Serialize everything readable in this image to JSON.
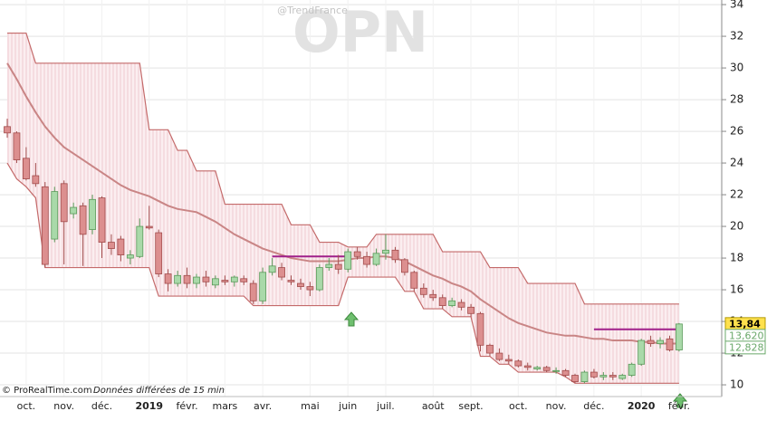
{
  "chart_data": {
    "type": "candlestick",
    "title": "OPN",
    "subtitle": "@TrendFrance",
    "source": "© ProRealTime.com",
    "note": "Données différées de 15 min",
    "categories": [
      null,
      null,
      "oct.",
      null,
      null,
      null,
      "nov.",
      null,
      null,
      null,
      "déc.",
      null,
      null,
      null,
      null,
      "2019",
      null,
      null,
      null,
      "févr.",
      null,
      null,
      null,
      "mars",
      null,
      null,
      null,
      "avr.",
      null,
      null,
      null,
      null,
      "mai",
      null,
      null,
      null,
      "juin",
      null,
      null,
      null,
      "juil.",
      null,
      null,
      null,
      null,
      "août",
      null,
      null,
      null,
      "sept.",
      null,
      null,
      null,
      null,
      "oct.",
      null,
      null,
      null,
      "nov.",
      null,
      null,
      null,
      "déc.",
      null,
      null,
      null,
      null,
      "2020",
      null,
      null,
      null,
      "févr."
    ],
    "open": [
      26.3,
      25.9,
      24.3,
      23.2,
      22.5,
      19.2,
      22.7,
      20.8,
      21.3,
      19.8,
      21.8,
      19.0,
      19.2,
      18.0,
      18.1,
      20.0,
      19.6,
      17.0,
      16.4,
      16.9,
      16.4,
      16.8,
      16.3,
      16.6,
      16.5,
      16.7,
      16.4,
      15.3,
      17.1,
      17.4,
      16.6,
      16.4,
      16.2,
      16.0,
      17.4,
      17.6,
      17.3,
      18.4,
      18.1,
      17.6,
      18.3,
      18.5,
      17.9,
      17.1,
      16.1,
      15.7,
      15.5,
      15.0,
      15.2,
      14.9,
      14.5,
      12.5,
      12.0,
      11.6,
      11.5,
      11.2,
      11.0,
      11.1,
      10.9,
      10.9,
      10.6,
      10.2,
      10.8,
      10.5,
      10.6,
      10.4,
      10.6,
      11.3,
      12.8,
      12.6,
      12.9,
      12.2
    ],
    "high": [
      26.8,
      26.0,
      25.0,
      24.0,
      22.8,
      22.5,
      22.9,
      21.5,
      21.5,
      22.0,
      21.9,
      19.5,
      19.4,
      18.5,
      20.5,
      21.3,
      19.8,
      17.3,
      17.2,
      17.4,
      17.0,
      17.2,
      16.9,
      16.9,
      16.9,
      16.9,
      16.6,
      17.4,
      18.0,
      17.7,
      16.9,
      16.7,
      16.5,
      17.6,
      18.0,
      18.2,
      18.6,
      18.7,
      18.4,
      18.6,
      19.5,
      18.7,
      18.0,
      17.2,
      16.4,
      16.0,
      15.7,
      15.5,
      15.4,
      15.1,
      14.6,
      12.6,
      12.3,
      11.9,
      11.6,
      11.4,
      11.2,
      11.2,
      11.1,
      11.0,
      10.7,
      10.9,
      11.0,
      10.8,
      10.8,
      10.7,
      11.4,
      12.9,
      13.1,
      13.0,
      13.1,
      13.9
    ],
    "low": [
      25.6,
      24.0,
      22.9,
      22.5,
      17.4,
      19.0,
      17.6,
      20.5,
      17.5,
      19.5,
      18.0,
      18.2,
      17.8,
      17.6,
      18.0,
      19.8,
      16.8,
      15.9,
      16.2,
      16.1,
      16.1,
      16.2,
      16.1,
      16.3,
      16.2,
      16.3,
      15.1,
      15.1,
      16.9,
      16.6,
      16.3,
      16.0,
      15.6,
      15.9,
      17.2,
      17.0,
      17.1,
      17.9,
      17.4,
      17.5,
      17.9,
      17.7,
      16.9,
      15.9,
      15.5,
      15.3,
      14.8,
      14.9,
      14.7,
      14.3,
      12.1,
      11.8,
      11.5,
      11.3,
      11.1,
      10.9,
      10.9,
      10.8,
      10.7,
      10.5,
      10.1,
      10.1,
      10.4,
      10.3,
      10.3,
      10.3,
      10.5,
      11.2,
      12.4,
      12.3,
      12.1,
      12.1
    ],
    "close": [
      25.9,
      24.2,
      23.0,
      22.7,
      17.6,
      22.2,
      20.3,
      21.2,
      19.5,
      21.7,
      19.0,
      18.6,
      18.2,
      18.2,
      20.0,
      19.9,
      17.0,
      16.4,
      16.9,
      16.4,
      16.8,
      16.5,
      16.7,
      16.5,
      16.8,
      16.5,
      15.3,
      17.1,
      17.5,
      16.8,
      16.5,
      16.2,
      16.0,
      17.4,
      17.6,
      17.3,
      18.4,
      18.1,
      17.6,
      18.3,
      18.5,
      17.9,
      17.1,
      16.1,
      15.7,
      15.5,
      15.0,
      15.3,
      14.9,
      14.5,
      12.5,
      12.0,
      11.6,
      11.5,
      11.2,
      11.1,
      11.1,
      10.9,
      10.9,
      10.6,
      10.2,
      10.8,
      10.5,
      10.6,
      10.5,
      10.6,
      11.3,
      12.8,
      12.6,
      12.8,
      12.2,
      13.84
    ],
    "up_color": "#a9d9a9",
    "down_color": "#dc8f8f",
    "channel_color": "#c46a6a",
    "channel_upper": [
      32.2,
      32.2,
      32.2,
      30.3,
      30.3,
      30.3,
      30.3,
      30.3,
      30.3,
      30.3,
      30.3,
      30.3,
      30.3,
      30.3,
      30.3,
      26.1,
      26.1,
      26.1,
      24.8,
      24.8,
      23.5,
      23.5,
      23.5,
      21.4,
      21.4,
      21.4,
      21.4,
      21.4,
      21.4,
      21.4,
      20.1,
      20.1,
      20.1,
      19.0,
      19.0,
      19.0,
      18.7,
      18.7,
      18.7,
      19.5,
      19.5,
      19.5,
      19.5,
      19.5,
      19.5,
      19.5,
      18.4,
      18.4,
      18.4,
      18.4,
      18.4,
      17.4,
      17.4,
      17.4,
      17.4,
      16.4,
      16.4,
      16.4,
      16.4,
      16.4,
      16.4,
      15.1,
      15.1,
      15.1,
      15.1,
      15.1,
      15.1,
      15.1,
      15.1,
      15.1,
      15.1,
      15.1
    ],
    "channel_lower": [
      24.0,
      23.0,
      22.5,
      21.8,
      17.4,
      17.4,
      17.4,
      17.4,
      17.4,
      17.4,
      17.4,
      17.4,
      17.4,
      17.4,
      17.4,
      17.4,
      15.6,
      15.6,
      15.6,
      15.6,
      15.6,
      15.6,
      15.6,
      15.6,
      15.6,
      15.6,
      15.0,
      15.0,
      15.0,
      15.0,
      15.0,
      15.0,
      15.0,
      15.0,
      15.0,
      15.0,
      16.8,
      16.8,
      16.8,
      16.8,
      16.8,
      16.8,
      15.9,
      15.9,
      14.8,
      14.8,
      14.8,
      14.3,
      14.3,
      14.3,
      11.8,
      11.8,
      11.3,
      11.3,
      10.8,
      10.8,
      10.8,
      10.8,
      10.8,
      10.5,
      10.1,
      10.1,
      10.1,
      10.1,
      10.1,
      10.1,
      10.1,
      10.1,
      10.1,
      10.1,
      10.1,
      10.1
    ],
    "ma_color": "#c98585",
    "ma": [
      30.3,
      29.3,
      28.2,
      27.2,
      26.3,
      25.6,
      25.0,
      24.6,
      24.2,
      23.8,
      23.4,
      23.0,
      22.6,
      22.3,
      22.1,
      21.9,
      21.6,
      21.3,
      21.1,
      21.0,
      20.9,
      20.6,
      20.3,
      19.9,
      19.5,
      19.2,
      18.9,
      18.6,
      18.4,
      18.2,
      18.0,
      17.9,
      17.8,
      17.8,
      17.8,
      17.8,
      17.9,
      18.0,
      18.0,
      18.1,
      18.1,
      18.0,
      17.8,
      17.5,
      17.2,
      16.9,
      16.7,
      16.4,
      16.2,
      15.9,
      15.4,
      15.0,
      14.6,
      14.2,
      13.9,
      13.7,
      13.5,
      13.3,
      13.2,
      13.1,
      13.1,
      13.0,
      12.9,
      12.9,
      12.8,
      12.8,
      12.8,
      12.7,
      12.7,
      12.6,
      12.6,
      12.6
    ],
    "levels": [
      {
        "value": 18.1,
        "start": 28,
        "end": 36
      },
      {
        "value": 13.5,
        "start": 62,
        "end": 71
      }
    ],
    "level_color": "#a0208a",
    "price_tags": {
      "values": [
        13.84,
        13.62,
        12.828
      ],
      "value_labels": [
        "13,84",
        "13,620",
        "12,828"
      ],
      "fills": [
        "#ffe14d",
        "#ffffff",
        "#ffffff"
      ],
      "text_colors": [
        "#000000",
        "#6aa86a",
        "#6aa86a"
      ]
    },
    "ylim": [
      9.26,
      34.29
    ],
    "yticks": [
      10,
      12,
      14,
      16,
      18,
      20,
      22,
      24,
      26,
      28,
      30,
      32,
      34
    ],
    "grid": true
  }
}
